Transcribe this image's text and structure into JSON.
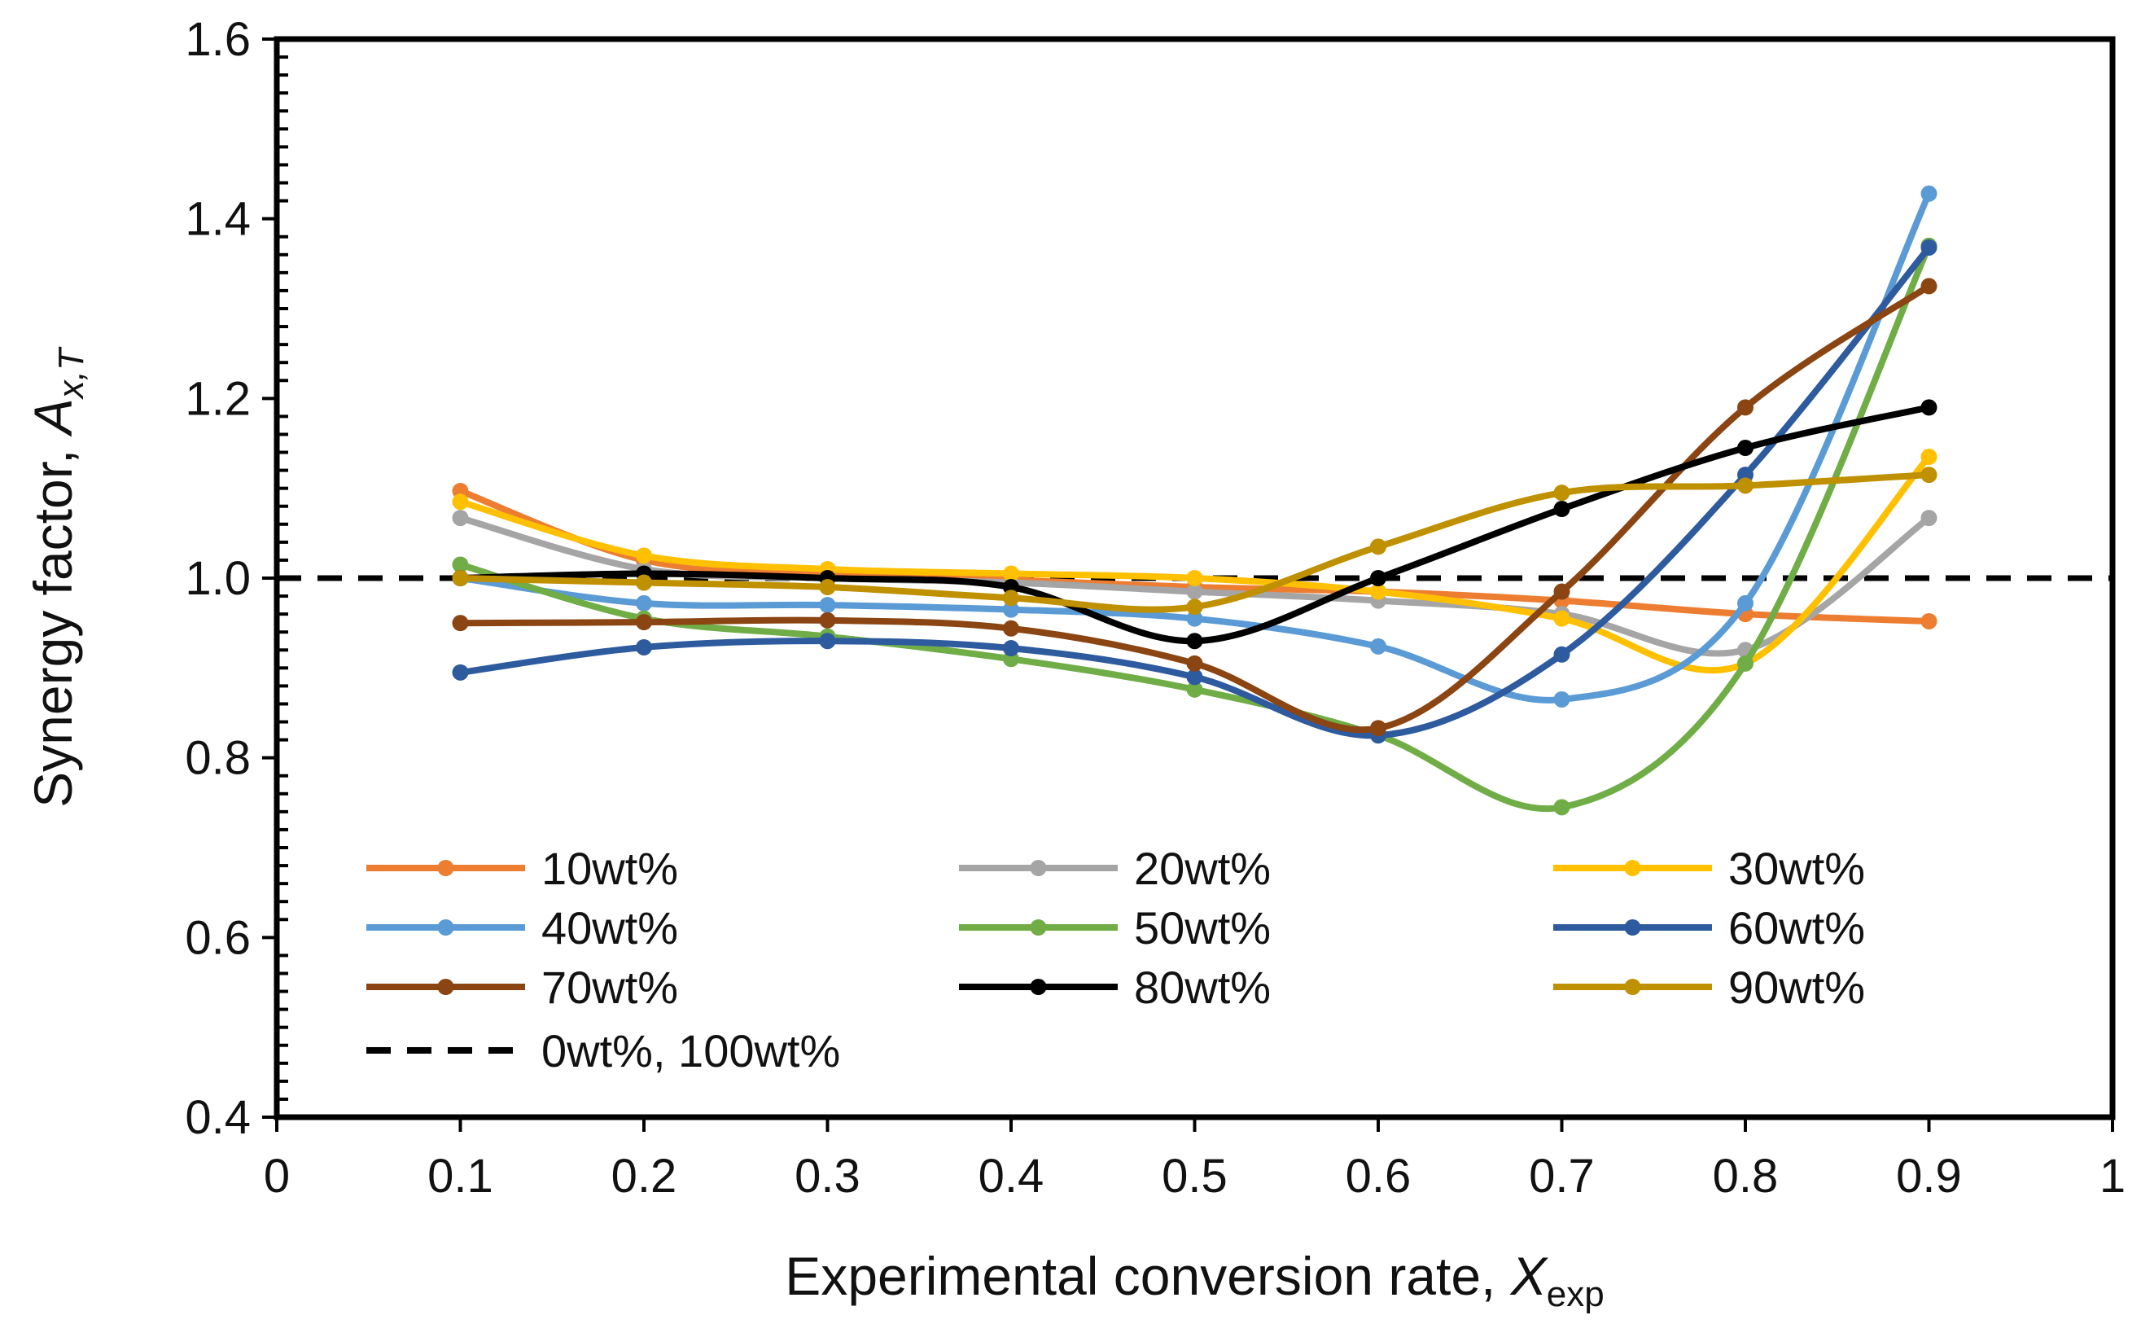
{
  "chart_data": {
    "type": "line",
    "title": "",
    "xlabel": {
      "main": "Experimental conversion rate, ",
      "var": "X",
      "sub": "exp"
    },
    "ylabel": {
      "main": "Synergy factor, ",
      "var": "A",
      "sub": "x,T"
    },
    "xlim": [
      0,
      1
    ],
    "ylim": [
      0.4,
      1.6
    ],
    "x_ticks": [
      "0",
      "0.1",
      "0.2",
      "0.3",
      "0.4",
      "0.5",
      "0.6",
      "0.7",
      "0.8",
      "0.9",
      "1"
    ],
    "y_ticks": [
      "0.4",
      "0.6",
      "0.8",
      "1.0",
      "1.2",
      "1.4",
      "1.6"
    ],
    "x": [
      0.1,
      0.2,
      0.3,
      0.4,
      0.5,
      0.6,
      0.7,
      0.8,
      0.9
    ],
    "series": [
      {
        "name": "10wt%",
        "color": "#ED7D31",
        "values": [
          1.097,
          1.02,
          1.005,
          0.998,
          0.99,
          0.985,
          0.975,
          0.96,
          0.952
        ]
      },
      {
        "name": "20wt%",
        "color": "#A5A5A5",
        "values": [
          1.067,
          1.01,
          1.0,
          0.995,
          0.985,
          0.975,
          0.96,
          0.92,
          1.067
        ]
      },
      {
        "name": "30wt%",
        "color": "#FFC000",
        "values": [
          1.085,
          1.025,
          1.01,
          1.005,
          1.0,
          0.985,
          0.955,
          0.905,
          1.135
        ]
      },
      {
        "name": "40wt%",
        "color": "#5B9BD5",
        "values": [
          1.0,
          0.972,
          0.97,
          0.965,
          0.955,
          0.924,
          0.865,
          0.972,
          1.428
        ]
      },
      {
        "name": "50wt%",
        "color": "#70AD47",
        "values": [
          1.015,
          0.955,
          0.935,
          0.91,
          0.876,
          0.825,
          0.745,
          0.905,
          1.37
        ]
      },
      {
        "name": "60wt%",
        "color": "#2E5A9E",
        "values": [
          0.895,
          0.923,
          0.93,
          0.922,
          0.89,
          0.825,
          0.915,
          1.115,
          1.368
        ]
      },
      {
        "name": "70wt%",
        "color": "#8B4513",
        "values": [
          0.95,
          0.951,
          0.953,
          0.944,
          0.905,
          0.833,
          0.985,
          1.19,
          1.325
        ]
      },
      {
        "name": "80wt%",
        "color": "#000000",
        "values": [
          1.0,
          1.005,
          1.0,
          0.99,
          0.93,
          1.0,
          1.077,
          1.145,
          1.19
        ]
      },
      {
        "name": "90wt%",
        "color": "#BF9000",
        "values": [
          1.0,
          0.995,
          0.99,
          0.978,
          0.968,
          1.035,
          1.095,
          1.103,
          1.115
        ]
      }
    ],
    "reference_line": {
      "name": "0wt%, 100wt%",
      "value": 1.0,
      "color": "#000000",
      "style": "dashed"
    },
    "legend": {
      "placement": "bottom-left inside",
      "columns": 3
    },
    "grid": false
  }
}
